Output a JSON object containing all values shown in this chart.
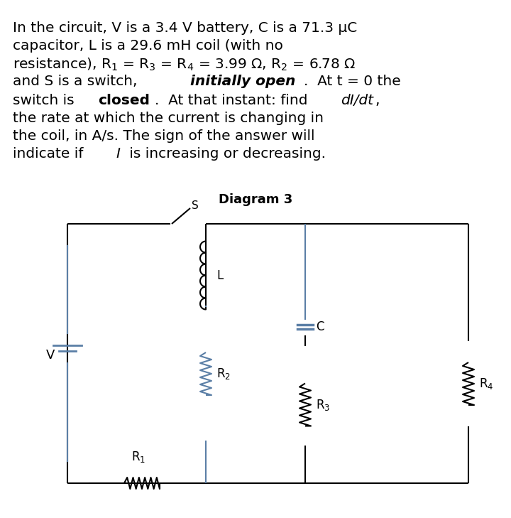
{
  "title_text": "Diagram 3",
  "problem_text_lines": [
    [
      "In the circuit, V is a 3.4 V battery, C is a 71.3 μC"
    ],
    [
      "capacitor, L is a 29.6 mH coil (with no"
    ],
    [
      "resistance), R",
      "1",
      " = R",
      "3",
      " = R",
      "4",
      " = 3.99 Ω, R",
      "2",
      " = 6.78 Ω"
    ],
    [
      "and S is a switch, ",
      "initially open",
      ".  At t = 0 the"
    ],
    [
      "switch is ",
      "closed",
      ".  At that instant: find ",
      "dI/dt",
      ","
    ],
    [
      "the rate at which the current is changing in"
    ],
    [
      "the coil, in A/s. The sign of the answer will"
    ],
    [
      "indicate if ",
      "I",
      " is increasing or decreasing."
    ]
  ],
  "bg_color": "#ffffff",
  "line_color": "#000000",
  "circuit_line_color": "#5b7fa6",
  "font_size_problem": 14.5,
  "font_size_title": 13,
  "font_size_labels": 12
}
